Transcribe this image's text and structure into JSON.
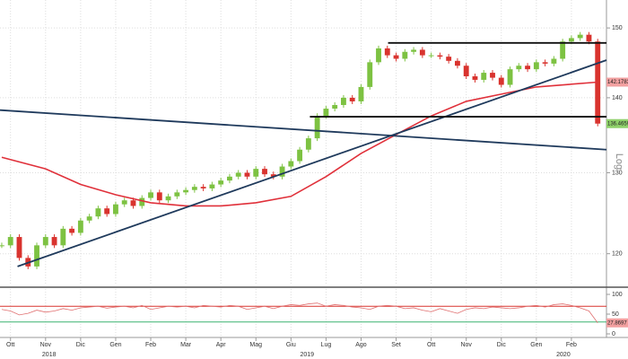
{
  "chart_data": {
    "type": "candlestick",
    "log_scale": true,
    "grid": true,
    "y_scale_label": "Log",
    "ylim": [
      116.3,
      154.2
    ],
    "yticks": [
      120,
      130,
      140,
      150
    ],
    "xlim": [
      -0.3,
      17
    ],
    "xticks": [
      {
        "value": 0,
        "label": "Ott"
      },
      {
        "value": 1,
        "label": "Nov"
      },
      {
        "value": 2,
        "label": "Dic"
      },
      {
        "value": 3,
        "label": "Gen"
      },
      {
        "value": 4,
        "label": "Feb"
      },
      {
        "value": 5,
        "label": "Mar"
      },
      {
        "value": 6,
        "label": "Apr"
      },
      {
        "value": 7,
        "label": "Mag"
      },
      {
        "value": 8,
        "label": "Giu"
      },
      {
        "value": 9,
        "label": "Lug"
      },
      {
        "value": 10,
        "label": "Ago"
      },
      {
        "value": 11,
        "label": "Set"
      },
      {
        "value": 12,
        "label": "Ott"
      },
      {
        "value": 13,
        "label": "Nov"
      },
      {
        "value": 14,
        "label": "Dic"
      },
      {
        "value": 15,
        "label": "Gen"
      },
      {
        "value": 16,
        "label": "Feb"
      }
    ],
    "year_ticks": [
      {
        "value": 1.1,
        "label": "2018"
      },
      {
        "value": 8.46,
        "label": "2019"
      },
      {
        "value": 15.77,
        "label": "2020"
      }
    ],
    "price": {
      "up_color": "#7dc242",
      "down_color": "#d9332e",
      "label_color": "#8fd16a",
      "x": [
        -0.25,
        0,
        0.25,
        0.5,
        0.75,
        1,
        1.25,
        1.5,
        1.75,
        2,
        2.25,
        2.5,
        2.75,
        3,
        3.25,
        3.5,
        3.75,
        4,
        4.25,
        4.5,
        4.75,
        5,
        5.25,
        5.5,
        5.75,
        6,
        6.25,
        6.5,
        6.75,
        7,
        7.25,
        7.5,
        7.75,
        8,
        8.25,
        8.5,
        8.75,
        9,
        9.25,
        9.5,
        9.75,
        10,
        10.25,
        10.5,
        10.75,
        11,
        11.25,
        11.5,
        11.75,
        12,
        12.25,
        12.5,
        12.75,
        13,
        13.25,
        13.5,
        13.75,
        14,
        14.25,
        14.5,
        14.75,
        15,
        15.25,
        15.5,
        15.75,
        16,
        16.25,
        16.5,
        16.75
      ],
      "values": [
        121,
        122,
        119.5,
        118.5,
        121,
        122,
        121,
        123,
        122.5,
        124,
        124.5,
        125.5,
        124.8,
        126,
        126.5,
        125.8,
        126.8,
        127.5,
        126.5,
        127,
        127.5,
        127.8,
        128.2,
        128,
        128.5,
        129,
        129.5,
        130,
        129.5,
        130.5,
        129.8,
        129.5,
        130.8,
        131.5,
        133,
        134.5,
        137.5,
        138.5,
        139,
        140,
        139.5,
        141.5,
        145,
        147,
        146,
        145.5,
        146.5,
        146.8,
        146,
        146,
        145.8,
        145.2,
        144.5,
        143,
        142.5,
        143.5,
        142.8,
        141.8,
        144,
        144.5,
        144,
        145,
        144.8,
        145.5,
        148,
        148.5,
        149,
        148,
        136.4659
      ]
    },
    "moving_average": {
      "color": "#e0303a",
      "x": [
        -0.25,
        1,
        2,
        3,
        4,
        5,
        6,
        7,
        8,
        9,
        10,
        11,
        12,
        13,
        14,
        15,
        16.75
      ],
      "values": [
        132,
        130.5,
        128.5,
        127.2,
        126.2,
        125.8,
        125.8,
        126.2,
        127,
        129.5,
        132.5,
        135,
        137.5,
        139.5,
        140.5,
        141.5,
        142.1783
      ]
    },
    "trendlines": [
      {
        "color": "#1f3a5c",
        "x": [
          0.2,
          17
        ],
        "values": [
          118.5,
          145.3
        ]
      },
      {
        "color": "#1f3a5c",
        "x": [
          -0.3,
          17
        ],
        "values": [
          138.3,
          133
        ]
      },
      {
        "color": "#111111",
        "x": [
          10.77,
          17
        ],
        "values": [
          147.8,
          147.8
        ]
      },
      {
        "color": "#111111",
        "x": [
          8.54,
          17
        ],
        "values": [
          137.4,
          137.4
        ]
      }
    ],
    "rsi": {
      "color": "#e07070",
      "ylim": [
        0,
        100
      ],
      "yticks": [
        0,
        50,
        100
      ],
      "upper": 70,
      "upper_color": "#d9332e",
      "lower": 30,
      "lower_color": "#3cb371",
      "values": [
        62,
        58,
        48,
        52,
        60,
        55,
        58,
        64,
        60,
        66,
        68,
        70,
        65,
        68,
        70,
        66,
        72,
        62,
        66,
        70,
        68,
        70,
        66,
        72,
        70,
        68,
        72,
        70,
        62,
        66,
        70,
        64,
        70,
        74,
        72,
        76,
        78,
        70,
        74,
        72,
        68,
        66,
        62,
        70,
        72,
        70,
        64,
        66,
        60,
        56,
        64,
        58,
        52,
        62,
        66,
        64,
        68,
        66,
        64,
        66,
        70,
        72,
        68,
        74,
        76,
        72,
        66,
        58,
        27.8697
      ]
    }
  }
}
